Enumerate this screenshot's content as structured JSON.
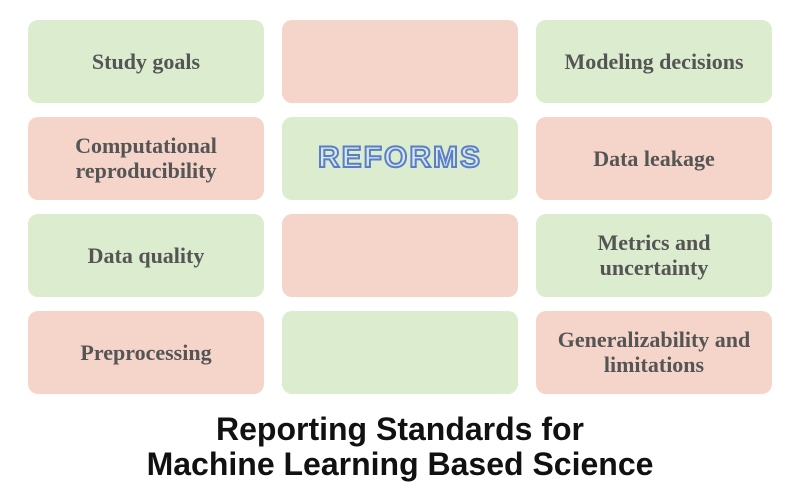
{
  "layout": {
    "rows": 4,
    "cols": 3,
    "gap_h": 18,
    "gap_v": 14,
    "tile_radius": 10
  },
  "colors": {
    "green": "#dceccf",
    "peach": "#f5d5c9",
    "label_text": "#555555",
    "background": "#ffffff",
    "reforms_fill": "#d9e6f7",
    "reforms_stroke": "#5a7fc4",
    "title_text": "#111111"
  },
  "typography": {
    "label_fontsize": 22,
    "label_weight": 600,
    "reforms_fontsize": 30,
    "reforms_weight": 900,
    "reforms_letter_spacing": 2,
    "title_fontsize": 32,
    "title_weight": 900
  },
  "tiles": [
    {
      "row": 0,
      "col": 0,
      "color": "green",
      "label": "Study goals"
    },
    {
      "row": 0,
      "col": 1,
      "color": "peach",
      "label": ""
    },
    {
      "row": 0,
      "col": 2,
      "color": "green",
      "label": "Modeling decisions"
    },
    {
      "row": 1,
      "col": 0,
      "color": "peach",
      "label": "Computational reproducibility"
    },
    {
      "row": 1,
      "col": 1,
      "color": "green",
      "label": "REFORMS",
      "is_reforms": true
    },
    {
      "row": 1,
      "col": 2,
      "color": "peach",
      "label": "Data leakage"
    },
    {
      "row": 2,
      "col": 0,
      "color": "green",
      "label": "Data quality"
    },
    {
      "row": 2,
      "col": 1,
      "color": "peach",
      "label": ""
    },
    {
      "row": 2,
      "col": 2,
      "color": "green",
      "label": "Metrics and uncertainty"
    },
    {
      "row": 3,
      "col": 0,
      "color": "peach",
      "label": "Preprocessing"
    },
    {
      "row": 3,
      "col": 1,
      "color": "green",
      "label": ""
    },
    {
      "row": 3,
      "col": 2,
      "color": "peach",
      "label": "Generalizability and limitations"
    }
  ],
  "title_line1": "Reporting Standards for",
  "title_line2": "Machine Learning Based Science"
}
